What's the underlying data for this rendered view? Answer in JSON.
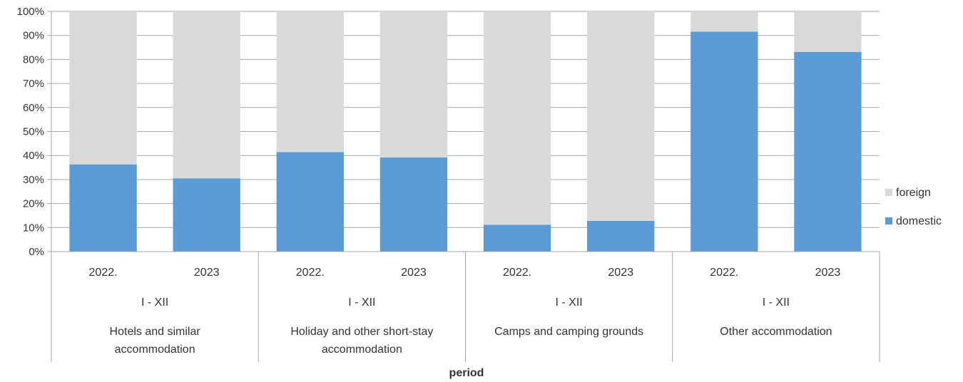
{
  "chart_data": {
    "type": "bar",
    "stacked": true,
    "percent": true,
    "title": "",
    "xlabel": "period",
    "ylabel": "",
    "ylim": [
      0,
      100
    ],
    "yticks": [
      "0%",
      "10%",
      "20%",
      "30%",
      "40%",
      "50%",
      "60%",
      "70%",
      "80%",
      "90%",
      "100%"
    ],
    "grid": true,
    "legend_position": "right",
    "groups": [
      {
        "label_lines": [
          "Hotels and similar",
          "accommodation"
        ],
        "subgroup": "I - XII",
        "categories": [
          "2022.",
          "2023"
        ]
      },
      {
        "label_lines": [
          "Holiday and other short-stay",
          "accommodation"
        ],
        "subgroup": "I - XII",
        "categories": [
          "2022.",
          "2023"
        ]
      },
      {
        "label_lines": [
          "Camps and camping grounds"
        ],
        "subgroup": "I - XII",
        "categories": [
          "2022.",
          "2023"
        ]
      },
      {
        "label_lines": [
          "Other accommodation"
        ],
        "subgroup": "I - XII",
        "categories": [
          "2022.",
          "2023"
        ]
      }
    ],
    "series": [
      {
        "name": "domestic",
        "color": "#5b9bd5",
        "values": [
          36.3,
          30.5,
          41.4,
          39.2,
          11.2,
          12.8,
          91.6,
          83.1
        ]
      },
      {
        "name": "foreign",
        "color": "#d9d9d9",
        "values": [
          63.7,
          69.5,
          58.6,
          60.8,
          88.8,
          87.2,
          8.4,
          16.9
        ]
      }
    ],
    "legend_order": [
      "foreign",
      "domestic"
    ]
  }
}
